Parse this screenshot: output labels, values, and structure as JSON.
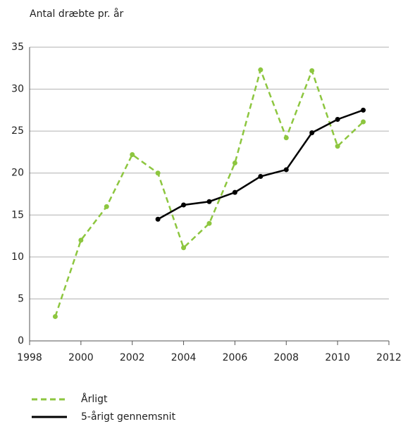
{
  "chart_data": {
    "type": "line",
    "y_label": "Antal dræbte pr. år",
    "x": [
      1999,
      2000,
      2001,
      2002,
      2003,
      2004,
      2005,
      2006,
      2007,
      2008,
      2009,
      2010,
      2011
    ],
    "series": [
      {
        "name": "Årligt",
        "color": "#8dc63f",
        "style": "dashed",
        "values": [
          2.9,
          12,
          16,
          22.2,
          20,
          11.1,
          14,
          21.2,
          32.3,
          24.2,
          32.2,
          23.2,
          26.1
        ]
      },
      {
        "name": "5-årigt gennemsnit",
        "color": "#000000",
        "style": "solid",
        "values": [
          null,
          null,
          null,
          null,
          14.5,
          16.2,
          16.6,
          17.7,
          19.6,
          20.4,
          24.8,
          26.4,
          27.5
        ]
      }
    ],
    "xlim": [
      1998,
      2012
    ],
    "xticks": [
      1998,
      2000,
      2002,
      2004,
      2006,
      2008,
      2010,
      2012
    ],
    "ylim": [
      0,
      35
    ],
    "yticks": [
      0,
      5,
      10,
      15,
      20,
      25,
      30,
      35
    ],
    "grid": true
  }
}
